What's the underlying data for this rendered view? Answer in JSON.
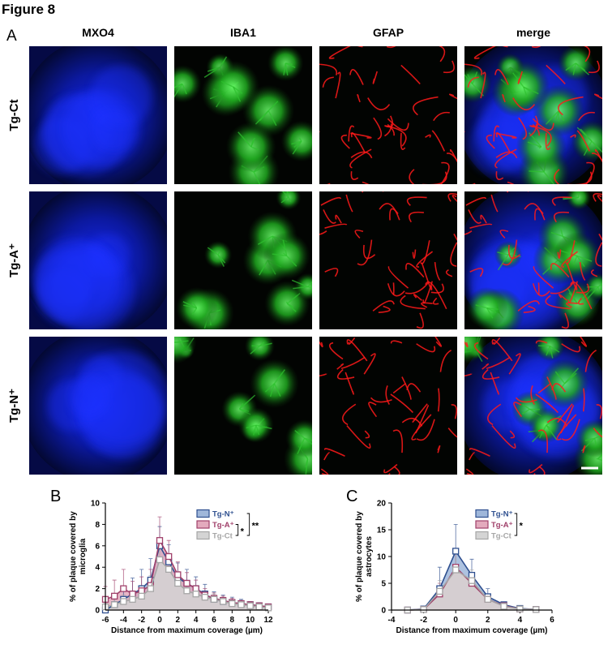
{
  "figure_title": "Figure 8",
  "panel_a": {
    "label": "A",
    "columns": [
      "MXO4",
      "IBA1",
      "GFAP",
      "merge"
    ],
    "rows": [
      "Tg-Ct",
      "Tg-A⁺",
      "Tg-N⁺"
    ]
  },
  "chart_data": [
    {
      "type": "line",
      "panel_label": "B",
      "xlabel": "Distance from maximum coverage (µm)",
      "ylabel": "% of plaque covered by microglia",
      "x": [
        -6,
        -5,
        -4,
        -3,
        -2,
        -1,
        0,
        1,
        2,
        3,
        4,
        5,
        6,
        7,
        8,
        9,
        10,
        11,
        12
      ],
      "xlim": [
        -6,
        12
      ],
      "xticks": [
        -6,
        -4,
        -2,
        0,
        2,
        4,
        6,
        8,
        10,
        12
      ],
      "ylim": [
        0,
        10
      ],
      "yticks": [
        0,
        2,
        4,
        6,
        8,
        10
      ],
      "series": [
        {
          "name": "Tg-N⁺",
          "color": "#2e4f8f",
          "fill": "#9fb7da",
          "values": [
            0,
            0.5,
            1,
            1.5,
            2,
            2.8,
            6,
            4.5,
            3,
            2.5,
            2,
            1.5,
            1,
            0.8,
            0.7,
            0.6,
            0.5,
            0.4,
            0.3
          ],
          "errors": [
            0.3,
            0.8,
            1.2,
            1.5,
            1.8,
            2,
            1.8,
            1.6,
            1.4,
            1.3,
            1.1,
            0.9,
            0.7,
            0.6,
            0.5,
            0.4,
            0.3,
            0.3,
            0.2
          ]
        },
        {
          "name": "Tg-A⁺",
          "color": "#a0406a",
          "fill": "#e3aabd",
          "values": [
            1,
            1.3,
            2,
            1.5,
            1.8,
            2.3,
            6.5,
            5,
            3.3,
            2.5,
            2,
            1.4,
            1.1,
            0.9,
            0.7,
            0.6,
            0.5,
            0.4,
            0.3
          ],
          "errors": [
            1.2,
            1.5,
            1.8,
            1.2,
            1.3,
            1.5,
            2.2,
            1.5,
            1.2,
            1,
            0.8,
            0.6,
            0.5,
            0.4,
            0.4,
            0.3,
            0.3,
            0.2,
            0.2
          ]
        },
        {
          "name": "Tg-Ct",
          "color": "#a6a6a6",
          "fill": "#d4d4d4",
          "values": [
            0.3,
            0.5,
            0.8,
            1,
            1.3,
            2,
            4.7,
            3.8,
            2.5,
            1.8,
            1.5,
            1.2,
            1,
            0.8,
            0.6,
            0.5,
            0.4,
            0.3,
            0.2
          ],
          "errors": [
            0.3,
            0.5,
            0.6,
            0.8,
            1,
            1.2,
            1.5,
            1.3,
            1.1,
            0.9,
            0.8,
            0.6,
            0.5,
            0.4,
            0.3,
            0.3,
            0.2,
            0.2,
            0.1
          ]
        }
      ],
      "annotations": [
        "**",
        "*"
      ]
    },
    {
      "type": "line",
      "panel_label": "C",
      "xlabel": "Distance from maximum coverage (µm)",
      "ylabel": "% of plaque covered by astrocytes",
      "x": [
        -3,
        -2,
        -1,
        0,
        1,
        2,
        3,
        4,
        5
      ],
      "xlim": [
        -4,
        6
      ],
      "xticks": [
        -4,
        -2,
        0,
        2,
        4,
        6
      ],
      "ylim": [
        0,
        20
      ],
      "yticks": [
        0,
        5,
        10,
        15,
        20
      ],
      "series": [
        {
          "name": "Tg-N⁺",
          "color": "#2e4f8f",
          "fill": "#9fb7da",
          "values": [
            0,
            0.2,
            4,
            11,
            6.5,
            2.5,
            1,
            0.3,
            0.1
          ],
          "errors": [
            0,
            0.3,
            4,
            5,
            3,
            1.5,
            0.5,
            0.2,
            0.1
          ]
        },
        {
          "name": "Tg-A⁺",
          "color": "#a0406a",
          "fill": "#e3aabd",
          "values": [
            0,
            0.1,
            3,
            8,
            5,
            2,
            0.8,
            0.2,
            0.1
          ],
          "errors": [
            0,
            0.2,
            2,
            3,
            2,
            1,
            0.4,
            0.1,
            0.1
          ]
        },
        {
          "name": "Tg-Ct",
          "color": "#a6a6a6",
          "fill": "#d4d4d4",
          "values": [
            0,
            0.1,
            3.5,
            7.5,
            5.5,
            2,
            0.7,
            0.2,
            0.1
          ],
          "errors": [
            0,
            0.2,
            2,
            3,
            2,
            1,
            0.4,
            0.1,
            0.1
          ]
        }
      ],
      "annotations": [
        "*"
      ]
    }
  ]
}
